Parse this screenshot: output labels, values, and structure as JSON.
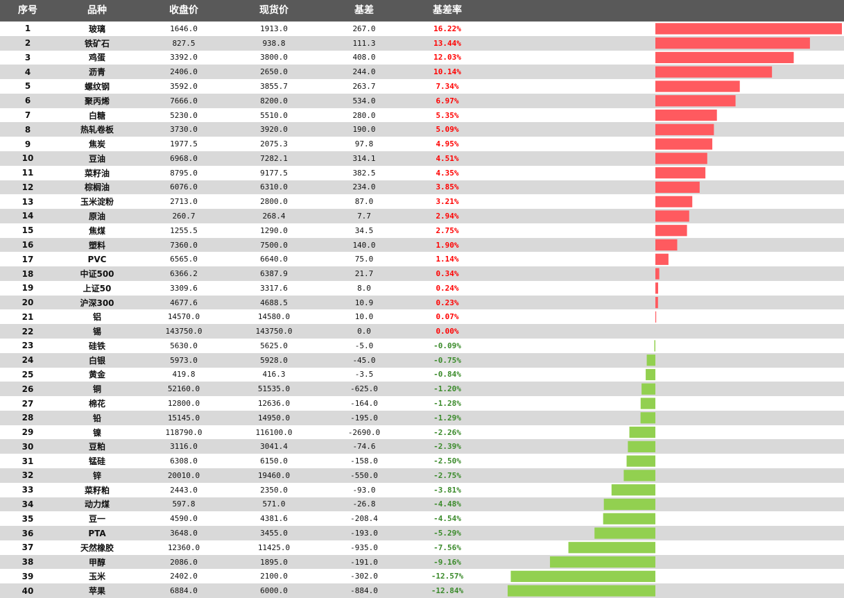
{
  "header": {
    "index": "序号",
    "name": "品种",
    "close": "收盘价",
    "spot": "现货价",
    "basis": "基差",
    "rate": "基差率"
  },
  "colors": {
    "header_bg": "#595959",
    "positive": "#ff5a5f",
    "negative": "#92d050",
    "positive_text": "#ff0000",
    "negative_text": "#3a8a2a"
  },
  "chart_data": {
    "type": "bar",
    "orientation": "horizontal",
    "categories": [
      "玻璃",
      "铁矿石",
      "鸡蛋",
      "沥青",
      "螺纹钢",
      "聚丙烯",
      "白糖",
      "热轧卷板",
      "焦炭",
      "豆油",
      "菜籽油",
      "棕榈油",
      "玉米淀粉",
      "原油",
      "焦煤",
      "塑料",
      "PVC",
      "中证500",
      "上证50",
      "沪深300",
      "铝",
      "锡",
      "硅铁",
      "白银",
      "黄金",
      "铜",
      "棉花",
      "铅",
      "镍",
      "豆粕",
      "锰硅",
      "锌",
      "菜籽粕",
      "动力煤",
      "豆一",
      "PTA",
      "天然橡胶",
      "甲醇",
      "玉米",
      "苹果"
    ],
    "values": [
      16.22,
      13.44,
      12.03,
      10.14,
      7.34,
      6.97,
      5.35,
      5.09,
      4.95,
      4.51,
      4.35,
      3.85,
      3.21,
      2.94,
      2.75,
      1.9,
      1.14,
      0.34,
      0.24,
      0.23,
      0.07,
      0.0,
      -0.09,
      -0.75,
      -0.84,
      -1.2,
      -1.28,
      -1.29,
      -2.26,
      -2.39,
      -2.5,
      -2.75,
      -3.81,
      -4.48,
      -4.54,
      -5.29,
      -7.56,
      -9.16,
      -12.57,
      -12.84
    ],
    "xlim": [
      -12.84,
      16.22
    ]
  },
  "rows": [
    {
      "idx": "1",
      "name": "玻璃",
      "close": "1646.0",
      "spot": "1913.0",
      "basis": "267.0",
      "rate": "16.22%"
    },
    {
      "idx": "2",
      "name": "铁矿石",
      "close": "827.5",
      "spot": "938.8",
      "basis": "111.3",
      "rate": "13.44%"
    },
    {
      "idx": "3",
      "name": "鸡蛋",
      "close": "3392.0",
      "spot": "3800.0",
      "basis": "408.0",
      "rate": "12.03%"
    },
    {
      "idx": "4",
      "name": "沥青",
      "close": "2406.0",
      "spot": "2650.0",
      "basis": "244.0",
      "rate": "10.14%"
    },
    {
      "idx": "5",
      "name": "螺纹钢",
      "close": "3592.0",
      "spot": "3855.7",
      "basis": "263.7",
      "rate": "7.34%"
    },
    {
      "idx": "6",
      "name": "聚丙烯",
      "close": "7666.0",
      "spot": "8200.0",
      "basis": "534.0",
      "rate": "6.97%"
    },
    {
      "idx": "7",
      "name": "白糖",
      "close": "5230.0",
      "spot": "5510.0",
      "basis": "280.0",
      "rate": "5.35%"
    },
    {
      "idx": "8",
      "name": "热轧卷板",
      "close": "3730.0",
      "spot": "3920.0",
      "basis": "190.0",
      "rate": "5.09%"
    },
    {
      "idx": "9",
      "name": "焦炭",
      "close": "1977.5",
      "spot": "2075.3",
      "basis": "97.8",
      "rate": "4.95%"
    },
    {
      "idx": "10",
      "name": "豆油",
      "close": "6968.0",
      "spot": "7282.1",
      "basis": "314.1",
      "rate": "4.51%"
    },
    {
      "idx": "11",
      "name": "菜籽油",
      "close": "8795.0",
      "spot": "9177.5",
      "basis": "382.5",
      "rate": "4.35%"
    },
    {
      "idx": "12",
      "name": "棕榈油",
      "close": "6076.0",
      "spot": "6310.0",
      "basis": "234.0",
      "rate": "3.85%"
    },
    {
      "idx": "13",
      "name": "玉米淀粉",
      "close": "2713.0",
      "spot": "2800.0",
      "basis": "87.0",
      "rate": "3.21%"
    },
    {
      "idx": "14",
      "name": "原油",
      "close": "260.7",
      "spot": "268.4",
      "basis": "7.7",
      "rate": "2.94%"
    },
    {
      "idx": "15",
      "name": "焦煤",
      "close": "1255.5",
      "spot": "1290.0",
      "basis": "34.5",
      "rate": "2.75%"
    },
    {
      "idx": "16",
      "name": "塑料",
      "close": "7360.0",
      "spot": "7500.0",
      "basis": "140.0",
      "rate": "1.90%"
    },
    {
      "idx": "17",
      "name": "PVC",
      "close": "6565.0",
      "spot": "6640.0",
      "basis": "75.0",
      "rate": "1.14%"
    },
    {
      "idx": "18",
      "name": "中证500",
      "close": "6366.2",
      "spot": "6387.9",
      "basis": "21.7",
      "rate": "0.34%"
    },
    {
      "idx": "19",
      "name": "上证50",
      "close": "3309.6",
      "spot": "3317.6",
      "basis": "8.0",
      "rate": "0.24%"
    },
    {
      "idx": "20",
      "name": "沪深300",
      "close": "4677.6",
      "spot": "4688.5",
      "basis": "10.9",
      "rate": "0.23%"
    },
    {
      "idx": "21",
      "name": "铝",
      "close": "14570.0",
      "spot": "14580.0",
      "basis": "10.0",
      "rate": "0.07%"
    },
    {
      "idx": "22",
      "name": "锡",
      "close": "143750.0",
      "spot": "143750.0",
      "basis": "0.0",
      "rate": "0.00%"
    },
    {
      "idx": "23",
      "name": "硅铁",
      "close": "5630.0",
      "spot": "5625.0",
      "basis": "-5.0",
      "rate": "-0.09%"
    },
    {
      "idx": "24",
      "name": "白银",
      "close": "5973.0",
      "spot": "5928.0",
      "basis": "-45.0",
      "rate": "-0.75%"
    },
    {
      "idx": "25",
      "name": "黄金",
      "close": "419.8",
      "spot": "416.3",
      "basis": "-3.5",
      "rate": "-0.84%"
    },
    {
      "idx": "26",
      "name": "铜",
      "close": "52160.0",
      "spot": "51535.0",
      "basis": "-625.0",
      "rate": "-1.20%"
    },
    {
      "idx": "27",
      "name": "棉花",
      "close": "12800.0",
      "spot": "12636.0",
      "basis": "-164.0",
      "rate": "-1.28%"
    },
    {
      "idx": "28",
      "name": "铅",
      "close": "15145.0",
      "spot": "14950.0",
      "basis": "-195.0",
      "rate": "-1.29%"
    },
    {
      "idx": "29",
      "name": "镍",
      "close": "118790.0",
      "spot": "116100.0",
      "basis": "-2690.0",
      "rate": "-2.26%"
    },
    {
      "idx": "30",
      "name": "豆粕",
      "close": "3116.0",
      "spot": "3041.4",
      "basis": "-74.6",
      "rate": "-2.39%"
    },
    {
      "idx": "31",
      "name": "锰硅",
      "close": "6308.0",
      "spot": "6150.0",
      "basis": "-158.0",
      "rate": "-2.50%"
    },
    {
      "idx": "32",
      "name": "锌",
      "close": "20010.0",
      "spot": "19460.0",
      "basis": "-550.0",
      "rate": "-2.75%"
    },
    {
      "idx": "33",
      "name": "菜籽粕",
      "close": "2443.0",
      "spot": "2350.0",
      "basis": "-93.0",
      "rate": "-3.81%"
    },
    {
      "idx": "34",
      "name": "动力煤",
      "close": "597.8",
      "spot": "571.0",
      "basis": "-26.8",
      "rate": "-4.48%"
    },
    {
      "idx": "35",
      "name": "豆一",
      "close": "4590.0",
      "spot": "4381.6",
      "basis": "-208.4",
      "rate": "-4.54%"
    },
    {
      "idx": "36",
      "name": "PTA",
      "close": "3648.0",
      "spot": "3455.0",
      "basis": "-193.0",
      "rate": "-5.29%"
    },
    {
      "idx": "37",
      "name": "天然橡胶",
      "close": "12360.0",
      "spot": "11425.0",
      "basis": "-935.0",
      "rate": "-7.56%"
    },
    {
      "idx": "38",
      "name": "甲醇",
      "close": "2086.0",
      "spot": "1895.0",
      "basis": "-191.0",
      "rate": "-9.16%"
    },
    {
      "idx": "39",
      "name": "玉米",
      "close": "2402.0",
      "spot": "2100.0",
      "basis": "-302.0",
      "rate": "-12.57%"
    },
    {
      "idx": "40",
      "name": "苹果",
      "close": "6884.0",
      "spot": "6000.0",
      "basis": "-884.0",
      "rate": "-12.84%"
    }
  ]
}
